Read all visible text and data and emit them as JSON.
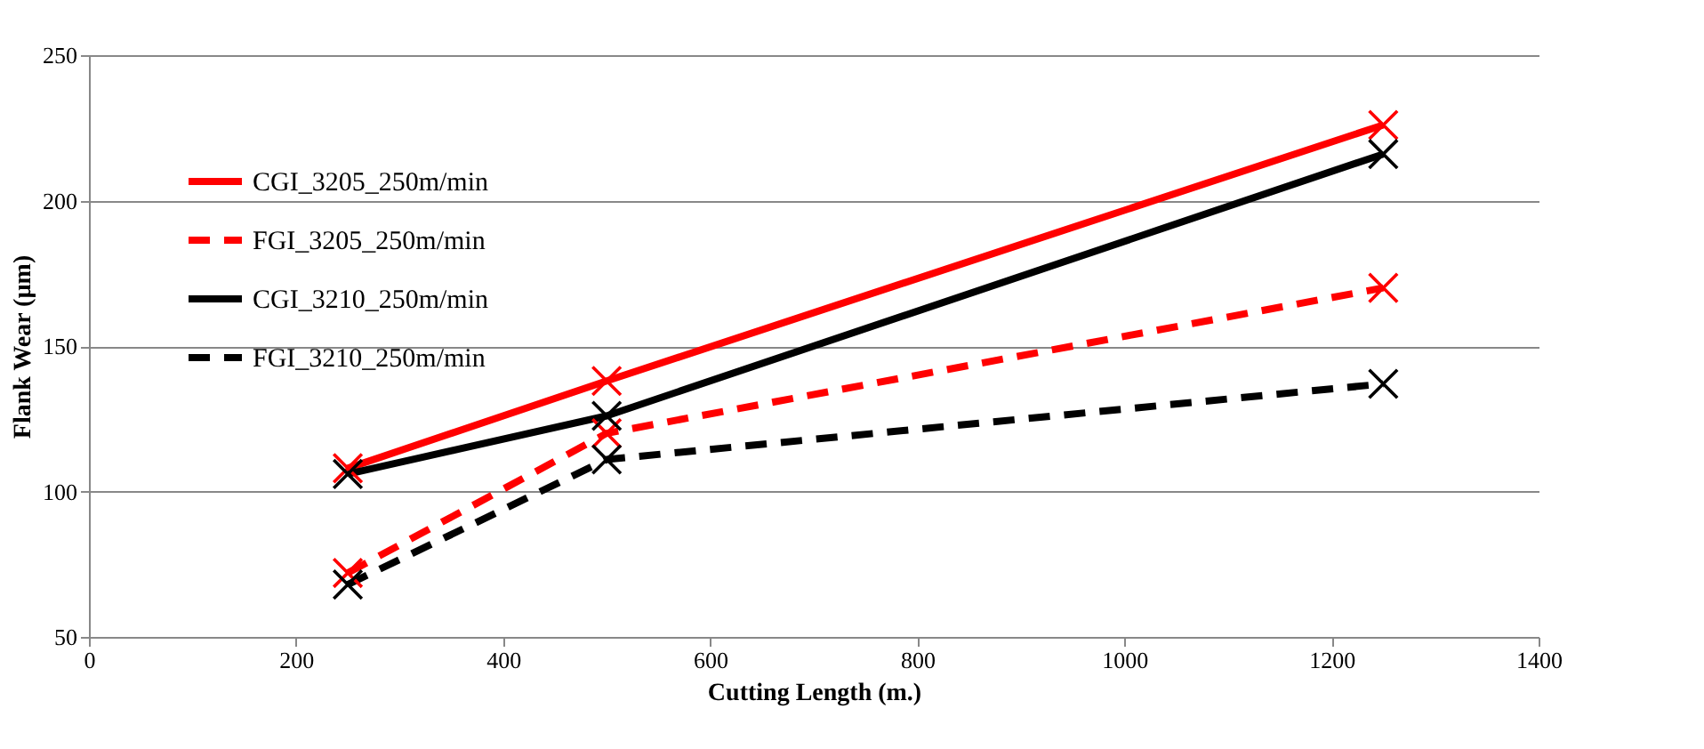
{
  "chart_data": {
    "type": "line",
    "xlabel": "Cutting Length (m.)",
    "ylabel": "Flank Wear (µm)",
    "x": [
      250,
      500,
      1250
    ],
    "series": [
      {
        "name": "CGI_3205_250m/min",
        "color": "#ff0000",
        "line_style": "solid",
        "values": [
          108,
          138,
          226
        ]
      },
      {
        "name": "FGI_3205_250m/min",
        "color": "#ff0000",
        "line_style": "dashed",
        "values": [
          72,
          120,
          170
        ]
      },
      {
        "name": "CGI_3210_250m/min",
        "color": "#000000",
        "line_style": "solid",
        "values": [
          106,
          126,
          216
        ]
      },
      {
        "name": "FGI_3210_250m/min",
        "color": "#000000",
        "line_style": "dashed",
        "values": [
          68,
          111,
          137
        ]
      }
    ],
    "xlim": [
      0,
      1400
    ],
    "xticks": [
      0,
      200,
      400,
      600,
      800,
      1000,
      1200,
      1400
    ],
    "ylim": [
      50,
      250
    ],
    "yticks": [
      50,
      100,
      150,
      200,
      250
    ],
    "grid": "y",
    "legend": "top left",
    "marker": "cross"
  }
}
